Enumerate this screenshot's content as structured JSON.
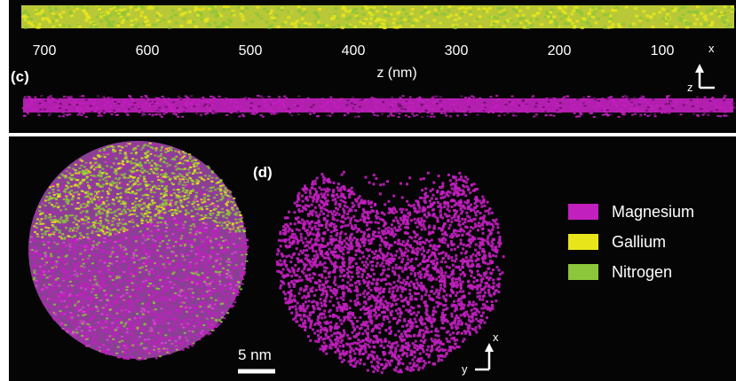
{
  "top_panel": {
    "axis": {
      "ticks": [
        "700",
        "600",
        "500",
        "400",
        "300",
        "200",
        "100"
      ],
      "label": "z (nm)"
    },
    "panel_label": "(c)",
    "orientation": {
      "vertical": "x",
      "horizontal": "z"
    }
  },
  "bottom_panel": {
    "panel_label": "(d)",
    "scale_bar": "5 nm",
    "orientation": {
      "vertical": "x",
      "horizontal": "y"
    },
    "legend": [
      {
        "label": "Magnesium",
        "color": "#c21fbf"
      },
      {
        "label": "Gallium",
        "color": "#e8e61b"
      },
      {
        "label": "Nitrogen",
        "color": "#8cc63a"
      }
    ]
  }
}
